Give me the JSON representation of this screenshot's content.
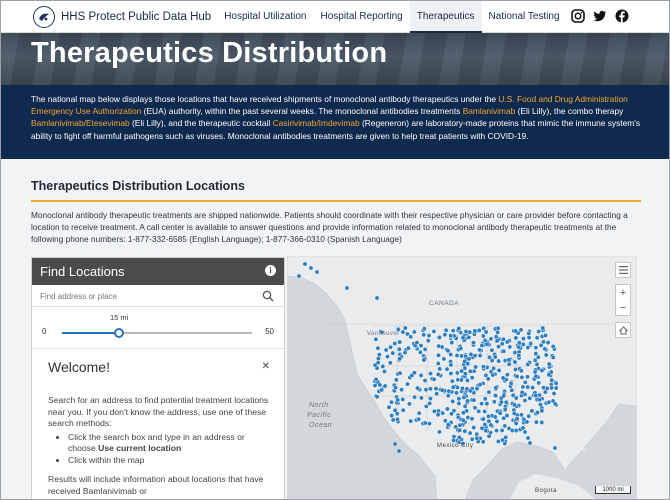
{
  "nav": {
    "brand": "HHS Protect Public Data Hub",
    "links": [
      "Hospital Utilization",
      "Hospital Reporting",
      "Therapeutics",
      "National Testing"
    ],
    "active_index": 2,
    "social_icons": [
      "instagram-icon",
      "twitter-icon",
      "facebook-icon"
    ]
  },
  "hero": {
    "title": "Therapeutics Distribution"
  },
  "intro": {
    "t1": "The national map below displays those locations that have received shipments of monoclonal antibody therapeutics under the ",
    "l1": "U.S. Food and Drug Administration Emergency Use Authorization",
    "t2": " (EUA) authority, within the past several weeks. The monoclonal antibodies treatments ",
    "l2": "Bamlanivimab",
    "t3": " (Eli Lilly), the combo therapy ",
    "l3": "Bamlanivimab/Etesevimab",
    "t4": " (Eli Lilly), and the therapeutic cocktail ",
    "l4": "Casirivimab/Imdevimab",
    "t5": " (Regeneron) are laboratory-made proteins that mimic the immune system's ability to fight off harmful pathogens such as viruses. Monoclonal antibodies treatments are given to help treat patients with COVID-19.",
    "link_color": "#f0a830"
  },
  "section": {
    "title": "Therapeutics Distribution Locations",
    "text": "Monoclonal antibody therapeutic treatments are shipped nationwide. Patients should coordinate with their respective physician or care provider before contacting a location to receive treatment. A call center is available to answer questions and provide information related to monoclonal antibody therapeutic treatments at the following phone numbers: 1-877-332-6585 (English Language); 1-877-366-0310 (Spanish Language)"
  },
  "find": {
    "title": "Find Locations",
    "search_placeholder": "Find address or place",
    "slider": {
      "min": "0",
      "max": "50",
      "value_label": "15 mi",
      "value": 15,
      "range_max": 50
    },
    "welcome_title": "Welcome!",
    "welcome_intro": "Search for an address to find potential treatment locations near you. If you don't know the address, use one of these search methods:",
    "bullet1_a": "Click the search box and type in an address or choose ",
    "bullet1_b": "Use current location",
    "bullet2": "Click within the map",
    "welcome_more": "Results will include information about locations that have received Bamlanivimab or"
  },
  "map": {
    "labels": {
      "canada": "CANADA",
      "vancouver": "Vancouver",
      "north_pacific": "North",
      "pacific": "Pacific",
      "ocean": "Ocean",
      "mexico_city": "Mexico City",
      "bogota": "Bogota"
    },
    "scale": "1000 mi",
    "marker_color": "#2e7fc0"
  }
}
